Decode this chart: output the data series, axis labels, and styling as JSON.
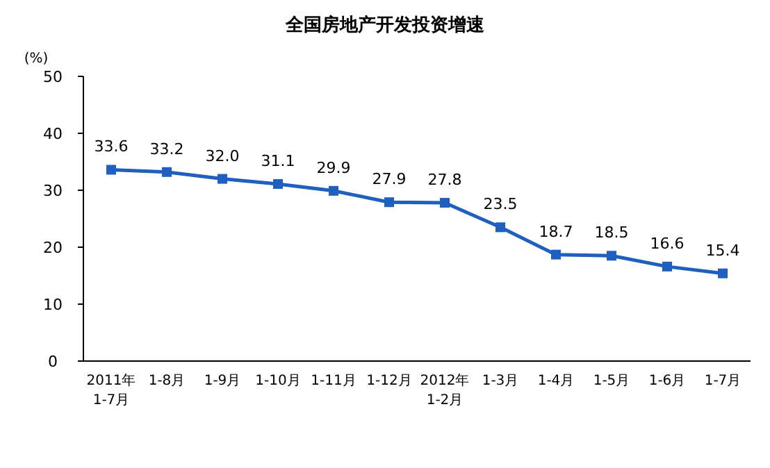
{
  "chart_data": {
    "type": "line",
    "title": "全国房地产开发投资增速",
    "ylabel": "(%)",
    "categories": [
      "2011年\n1-7月",
      "1-8月",
      "1-9月",
      "1-10月",
      "1-11月",
      "1-12月",
      "2012年\n1-2月",
      "1-3月",
      "1-4月",
      "1-5月",
      "1-6月",
      "1-7月"
    ],
    "values": [
      33.6,
      33.2,
      32.0,
      31.1,
      29.9,
      27.9,
      27.8,
      23.5,
      18.7,
      18.5,
      16.6,
      15.4
    ],
    "value_labels": [
      "33.6",
      "33.2",
      "32.0",
      "31.1",
      "29.9",
      "27.9",
      "27.8",
      "23.5",
      "18.7",
      "18.5",
      "16.6",
      "15.4"
    ],
    "color": "#1f5fbf",
    "marker": "square",
    "grid": false,
    "ylim": [
      0,
      50
    ],
    "yticks": [
      0,
      10,
      20,
      30,
      40,
      50
    ]
  }
}
